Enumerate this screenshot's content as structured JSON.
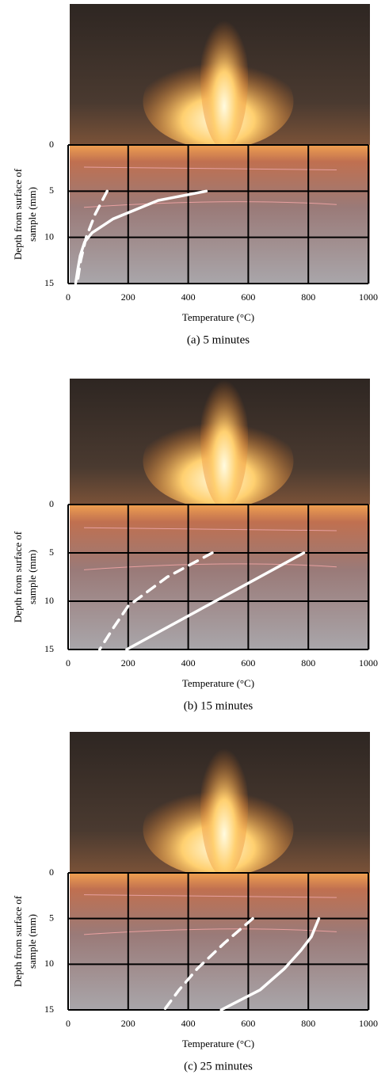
{
  "chart_data": [
    {
      "type": "line",
      "caption": "(a) 5 minutes",
      "x_label": "Temperature (°C)",
      "y_label": [
        "Depth from surface of",
        "sample (mm)"
      ],
      "xlim": [
        0,
        1000
      ],
      "xticks": [
        0,
        200,
        400,
        600,
        800,
        1000
      ],
      "ylim": [
        0,
        15
      ],
      "yticks": [
        0,
        5,
        10,
        15
      ],
      "invert_y": true,
      "grid": true,
      "series": [
        {
          "style": "solid",
          "color": "#ffffff",
          "x": [
            460,
            300,
            150,
            80,
            55,
            40,
            32,
            25
          ],
          "y": [
            5,
            6,
            8,
            9.5,
            10.5,
            12,
            13.5,
            15
          ]
        },
        {
          "style": "dashed",
          "color": "#ffffff",
          "x": [
            130,
            90,
            60,
            42,
            30
          ],
          "y": [
            5,
            7.5,
            10,
            12.5,
            15
          ]
        }
      ]
    },
    {
      "type": "line",
      "caption": "(b) 15 minutes",
      "x_label": "Temperature (°C)",
      "y_label": [
        "Depth from surface of",
        "sample (mm)"
      ],
      "xlim": [
        0,
        1000
      ],
      "xticks": [
        0,
        200,
        400,
        600,
        800,
        1000
      ],
      "ylim": [
        0,
        15
      ],
      "yticks": [
        0,
        5,
        10,
        15
      ],
      "invert_y": true,
      "grid": true,
      "series": [
        {
          "style": "solid",
          "color": "#ffffff",
          "x": [
            785,
            195
          ],
          "y": [
            5,
            15
          ]
        },
        {
          "style": "dashed",
          "color": "#ffffff",
          "x": [
            480,
            330,
            200,
            150,
            105
          ],
          "y": [
            5,
            7.5,
            10.5,
            12.8,
            15
          ]
        }
      ]
    },
    {
      "type": "line",
      "caption": "(c) 25 minutes",
      "x_label": "Temperature (°C)",
      "y_label": [
        "Depth from surface of",
        "sample (mm)"
      ],
      "xlim": [
        0,
        1000
      ],
      "xticks": [
        0,
        200,
        400,
        600,
        800,
        1000
      ],
      "ylim": [
        0,
        15
      ],
      "yticks": [
        0,
        5,
        10,
        15
      ],
      "invert_y": true,
      "grid": true,
      "series": [
        {
          "style": "solid",
          "color": "#ffffff",
          "x": [
            835,
            810,
            775,
            720,
            640,
            510
          ],
          "y": [
            5,
            7,
            8.5,
            10.5,
            12.8,
            15
          ]
        },
        {
          "style": "dashed",
          "color": "#ffffff",
          "x": [
            615,
            520,
            430,
            370,
            320
          ],
          "y": [
            5,
            7.7,
            10.5,
            12.8,
            15
          ]
        }
      ]
    }
  ]
}
